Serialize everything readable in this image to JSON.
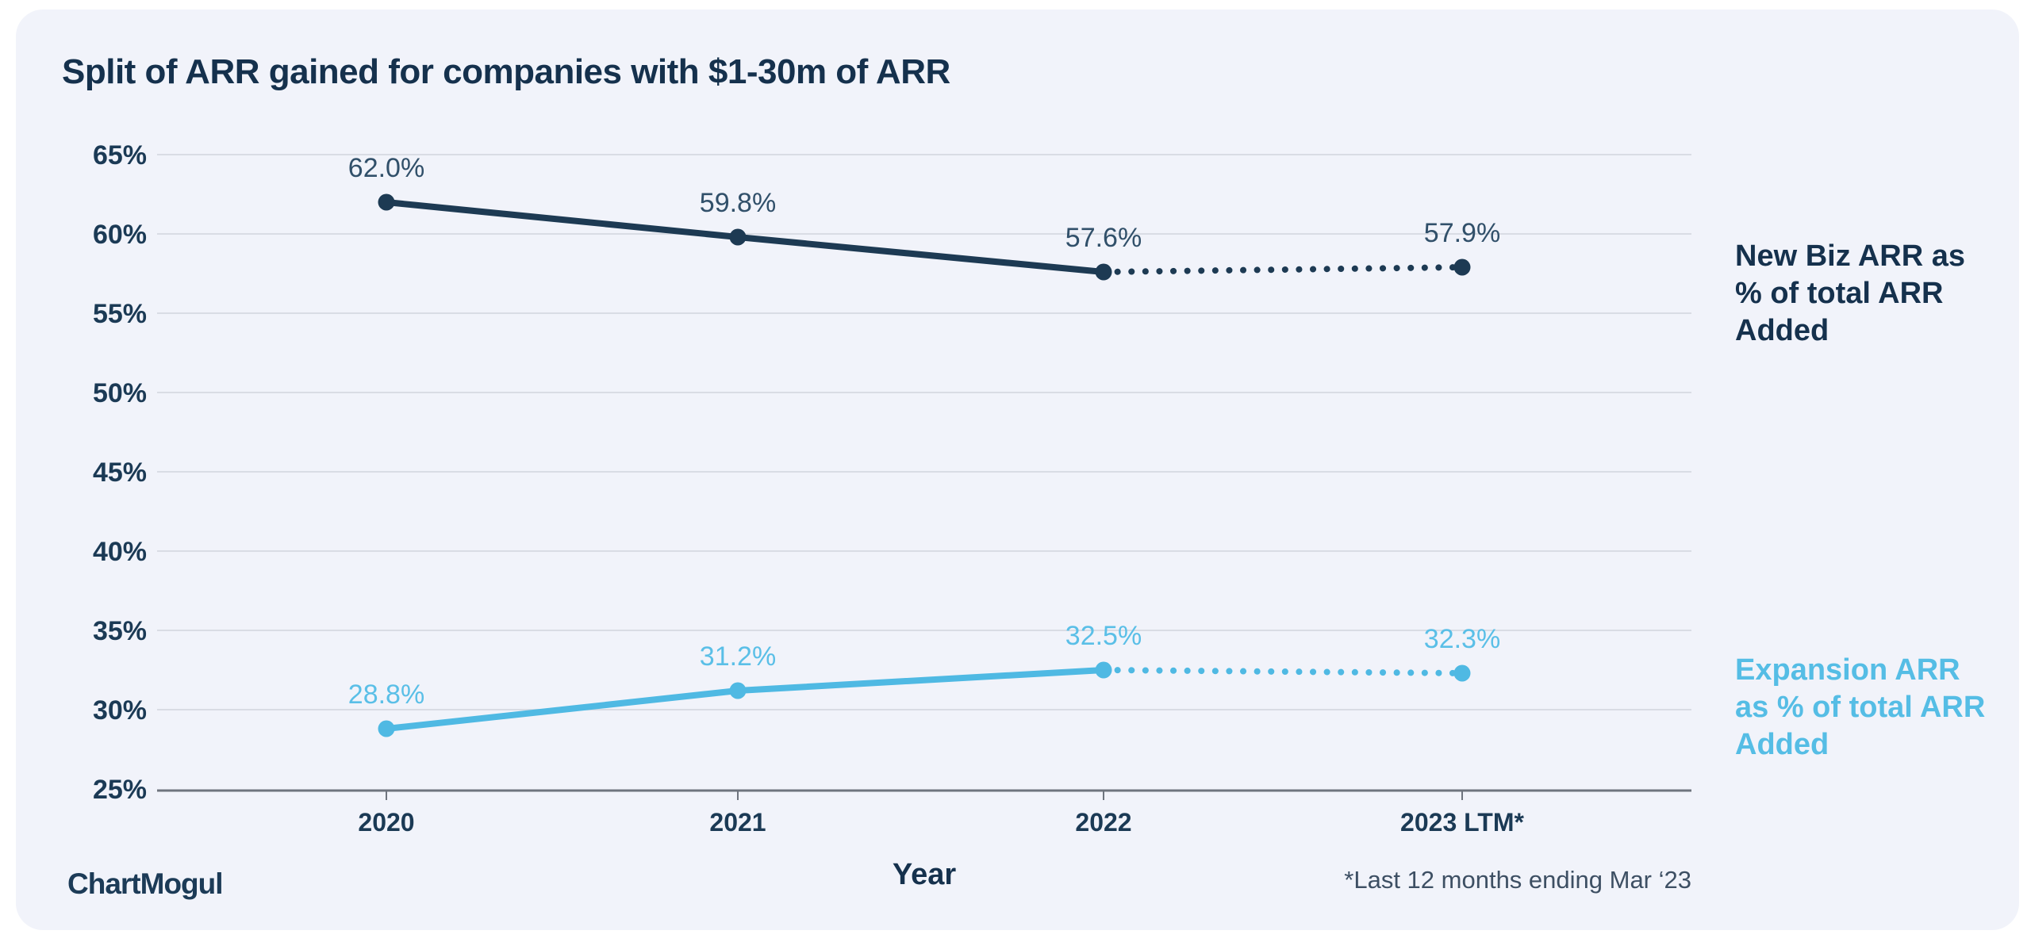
{
  "title": "Split of ARR gained for companies with $1-30m of ARR",
  "x_axis_title": "Year",
  "footnote": "*Last 12 months ending Mar ‘23",
  "brand": {
    "logo_text": "ChartMogul"
  },
  "colors": {
    "card_background": "#f1f3fa",
    "page_background": "#ffffff",
    "navy": "#1d3a53",
    "navy_text": "#15314d",
    "navy_value_label": "#31506a",
    "blue": "#4fb9e3",
    "blue_value_label": "#5abfe7",
    "gridline": "#d9dce4",
    "axis_line": "#6e747e",
    "tick_label": "#1b3a55",
    "footnote_text": "#3d4f63"
  },
  "chart_data": {
    "type": "line",
    "categories": [
      "2020",
      "2021",
      "2022",
      "2023 LTM*"
    ],
    "series": [
      {
        "name": "New Biz ARR as % of total ARR Added",
        "legend_lines": [
          "New Biz ARR as",
          "% of total ARR",
          "Added"
        ],
        "values": [
          62.0,
          59.8,
          57.6,
          57.9
        ],
        "value_labels": [
          "62.0%",
          "59.8%",
          "57.6%",
          "57.9%"
        ],
        "color": "#1d3a53",
        "value_label_color": "#31506a",
        "legend_color": "#15314d"
      },
      {
        "name": "Expansion ARR as % of total ARR Added",
        "legend_lines": [
          "Expansion ARR",
          "as % of total ARR",
          "Added"
        ],
        "values": [
          28.8,
          31.2,
          32.5,
          32.3
        ],
        "value_labels": [
          "28.8%",
          "31.2%",
          "32.5%",
          "32.3%"
        ],
        "color": "#4fb9e3",
        "value_label_color": "#5abfe7",
        "legend_color": "#55bde5"
      }
    ],
    "dotted_last_segment": true,
    "xlabel": "Year",
    "ylabel": "",
    "ylim": [
      25,
      65
    ],
    "yticks": [
      65,
      60,
      55,
      50,
      45,
      40,
      35,
      30,
      25
    ],
    "ytick_suffix": "%",
    "grid": true,
    "legend_position": "right"
  }
}
